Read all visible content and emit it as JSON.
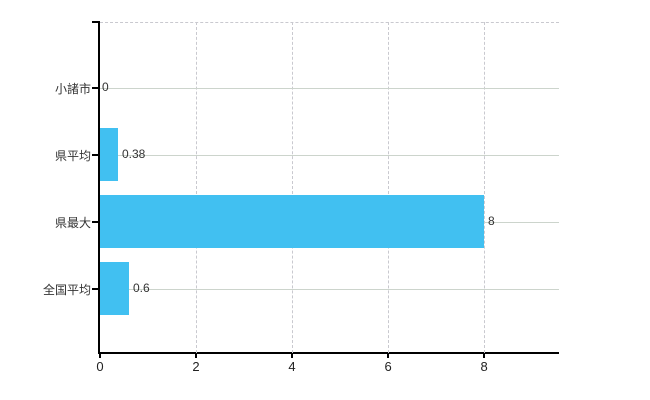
{
  "chart_data": {
    "type": "bar",
    "orientation": "horizontal",
    "title": "",
    "categories": [
      "小諸市",
      "県平均",
      "県最大",
      "全国平均"
    ],
    "values": [
      0,
      0.38,
      8,
      0.6
    ],
    "data_labels": [
      "0",
      "0.38",
      "8",
      "0.6"
    ],
    "xticks": [
      "0",
      "2",
      "4",
      "6",
      "8"
    ],
    "xtick_values": [
      0,
      2,
      4,
      6,
      8
    ],
    "xlim": [
      0,
      9.56
    ],
    "grid": true,
    "legend": false,
    "bar_color": "#41c0f1",
    "axis_color": "#000000",
    "h_grid_color": "#ccd4cc",
    "v_grid_color": "#c9c9cf",
    "top_border_color": "#c9c9cf",
    "label_color": "#333333"
  }
}
